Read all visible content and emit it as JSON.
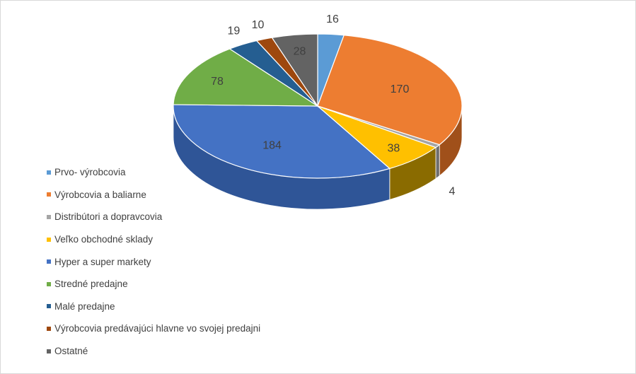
{
  "chart_data": {
    "type": "pie",
    "title": "",
    "series": [
      {
        "name": "Prvo- výrobcovia",
        "value": 16,
        "color": "#5b9bd5",
        "side": "#3d6d99"
      },
      {
        "name": "Výrobcovia a baliarne",
        "value": 170,
        "color": "#ed7d31",
        "side": "#a0501a"
      },
      {
        "name": "Distribútori a dopravcovia",
        "value": 4,
        "color": "#a5a5a5",
        "side": "#6e6e6e"
      },
      {
        "name": "Veľko obchodné sklady",
        "value": 38,
        "color": "#ffc000",
        "side": "#8a6b00"
      },
      {
        "name": "Hyper a super markety",
        "value": 184,
        "color": "#4472c4",
        "side": "#2f5597"
      },
      {
        "name": "Stredné predajne",
        "value": 78,
        "color": "#70ad47",
        "side": "#4a7a2c"
      },
      {
        "name": "Malé  predajne",
        "value": 19,
        "color": "#255e91",
        "side": "#183f63"
      },
      {
        "name": "Výrobcovia predávajúci hlavne vo svojej predajni",
        "value": 10,
        "color": "#9e480e",
        "side": "#6a3009"
      },
      {
        "name": "Ostatné",
        "value": 28,
        "color": "#636363",
        "side": "#3f3f3f"
      }
    ],
    "legend_position": "left"
  }
}
